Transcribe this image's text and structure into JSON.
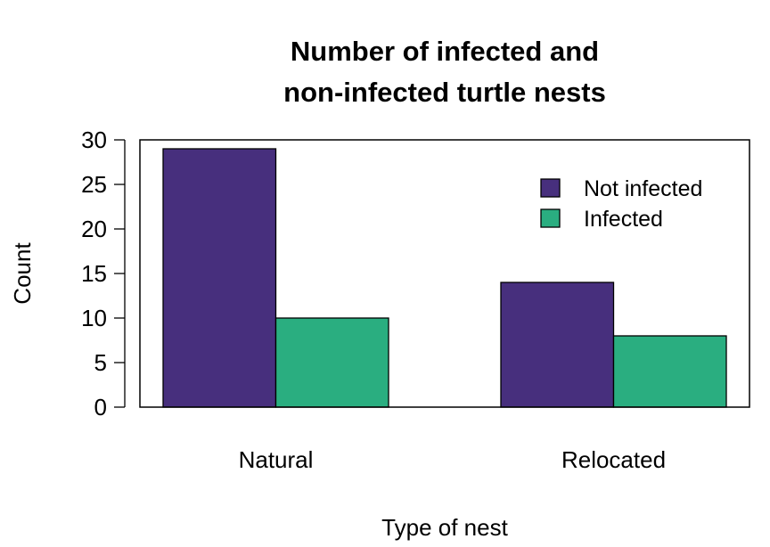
{
  "chart_data": {
    "type": "bar",
    "title_lines": [
      "Number of infected and",
      "non-infected turtle nests"
    ],
    "xlabel": "Type of nest",
    "ylabel": "Count",
    "categories": [
      "Natural",
      "Relocated"
    ],
    "series": [
      {
        "name": "Not infected",
        "values": [
          29,
          14
        ],
        "color": "#472F7D"
      },
      {
        "name": "Infected",
        "values": [
          10,
          8
        ],
        "color": "#2AAE80"
      }
    ],
    "ylim": [
      0,
      30
    ],
    "yticks": [
      0,
      5,
      10,
      15,
      20,
      25,
      30
    ],
    "grid": false,
    "legend": "top-right"
  }
}
